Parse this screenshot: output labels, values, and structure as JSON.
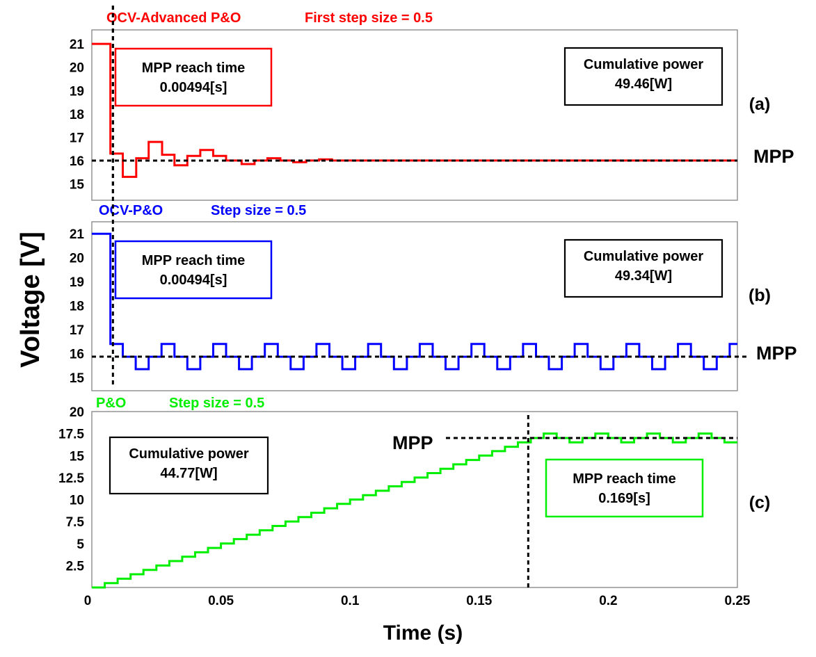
{
  "figure": {
    "ylabel": "Voltage [V]",
    "xlabel": "Time (s)",
    "x_ticks": [
      "0",
      "0.05",
      "0.1",
      "0.15",
      "0.2",
      "0.25"
    ]
  },
  "chart_data": [
    {
      "type": "line",
      "panel": "(a)",
      "color": "#ff0000",
      "title": "OCV-Advanced P&O",
      "subtitle": "First step size = 0.5",
      "xlim": [
        0,
        0.25
      ],
      "ylim": [
        14.3,
        21.6
      ],
      "y_ticks": [
        "15",
        "16",
        "17",
        "18",
        "19",
        "20",
        "21"
      ],
      "mpp_label": "MPP",
      "mpp_voltage": 16.0,
      "reach_time_value": 0.00494,
      "reach_box": {
        "label": "MPP reach time",
        "value": "0.00494[s]"
      },
      "cumulative_box": {
        "label": "Cumulative power",
        "value": "49.46[W]"
      },
      "series": [
        {
          "x": [
            0,
            0.0072,
            0.0072,
            0.012,
            0.012,
            0.0172,
            0.0172,
            0.022,
            0.022,
            0.0272,
            0.0272,
            0.032,
            0.032,
            0.037,
            0.037,
            0.042,
            0.042,
            0.047,
            0.047,
            0.052,
            0.052,
            0.058,
            0.058,
            0.063,
            0.063,
            0.068,
            0.068,
            0.073,
            0.073,
            0.078,
            0.078,
            0.083,
            0.083,
            0.088,
            0.088,
            0.093,
            0.093,
            0.25
          ],
          "y": [
            21.0,
            21.0,
            16.3,
            16.3,
            15.3,
            15.3,
            16.1,
            16.1,
            16.8,
            16.8,
            16.25,
            16.25,
            15.8,
            15.8,
            16.2,
            16.2,
            16.45,
            16.45,
            16.2,
            16.2,
            16.0,
            16.0,
            15.85,
            15.85,
            16.0,
            16.0,
            16.1,
            16.1,
            16.0,
            16.0,
            15.93,
            15.93,
            16.0,
            16.0,
            16.05,
            16.05,
            16.0,
            16.0
          ]
        }
      ]
    },
    {
      "type": "line",
      "panel": "(b)",
      "color": "#0000ff",
      "title": "OCV-P&O",
      "subtitle": "Step size = 0.5",
      "xlim": [
        0,
        0.25
      ],
      "ylim": [
        14.45,
        21.5
      ],
      "y_ticks": [
        "15",
        "16",
        "17",
        "18",
        "19",
        "20",
        "21"
      ],
      "mpp_label": "MPP",
      "mpp_voltage": 15.87,
      "reach_time_value": 0.00494,
      "reach_box": {
        "label": "MPP reach time",
        "value": "0.00494[s]"
      },
      "cumulative_box": {
        "label": "Cumulative power",
        "value": "49.34[W]"
      },
      "series": [
        {
          "x": [
            0,
            0.0072,
            0.0072,
            0.012,
            0.012,
            0.017,
            0.017,
            0.022,
            0.022,
            0.027,
            0.027,
            0.032,
            0.032,
            0.037,
            0.037,
            0.042,
            0.042,
            0.047,
            0.047,
            0.052,
            0.052,
            0.057,
            0.057,
            0.062,
            0.062,
            0.067,
            0.067,
            0.072,
            0.072,
            0.077,
            0.077,
            0.082,
            0.082,
            0.087,
            0.087,
            0.092,
            0.092,
            0.097,
            0.097,
            0.102,
            0.102,
            0.107,
            0.107,
            0.112,
            0.112,
            0.117,
            0.117,
            0.122,
            0.122,
            0.127,
            0.127,
            0.132,
            0.132,
            0.137,
            0.137,
            0.142,
            0.142,
            0.147,
            0.147,
            0.152,
            0.152,
            0.157,
            0.157,
            0.162,
            0.162,
            0.167,
            0.167,
            0.172,
            0.172,
            0.177,
            0.177,
            0.182,
            0.182,
            0.187,
            0.187,
            0.192,
            0.192,
            0.197,
            0.197,
            0.202,
            0.202,
            0.207,
            0.207,
            0.212,
            0.212,
            0.217,
            0.217,
            0.222,
            0.222,
            0.227,
            0.227,
            0.232,
            0.232,
            0.237,
            0.237,
            0.242,
            0.242,
            0.247,
            0.247,
            0.25
          ],
          "y": [
            21.0,
            21.0,
            16.4,
            16.4,
            15.87,
            15.87,
            15.35,
            15.35,
            15.87,
            15.87,
            16.4,
            16.4,
            15.87,
            15.87,
            15.35,
            15.35,
            15.87,
            15.87,
            16.4,
            16.4,
            15.87,
            15.87,
            15.35,
            15.35,
            15.87,
            15.87,
            16.4,
            16.4,
            15.87,
            15.87,
            15.35,
            15.35,
            15.87,
            15.87,
            16.4,
            16.4,
            15.87,
            15.87,
            15.35,
            15.35,
            15.87,
            15.87,
            16.4,
            16.4,
            15.87,
            15.87,
            15.35,
            15.35,
            15.87,
            15.87,
            16.4,
            16.4,
            15.87,
            15.87,
            15.35,
            15.35,
            15.87,
            15.87,
            16.4,
            16.4,
            15.87,
            15.87,
            15.35,
            15.35,
            15.87,
            15.87,
            16.4,
            16.4,
            15.87,
            15.87,
            15.35,
            15.35,
            15.87,
            15.87,
            16.4,
            16.4,
            15.87,
            15.87,
            15.35,
            15.35,
            15.87,
            15.87,
            16.4,
            16.4,
            15.87,
            15.87,
            15.35,
            15.35,
            15.87,
            15.87,
            16.4,
            16.4,
            15.87,
            15.87,
            15.35,
            15.35,
            15.87,
            15.87,
            16.4,
            16.4
          ]
        }
      ]
    },
    {
      "type": "line",
      "panel": "(c)",
      "color": "#00ee00",
      "title": "P&O",
      "subtitle": "Step size = 0.5",
      "xlim": [
        0,
        0.25
      ],
      "ylim": [
        0,
        20
      ],
      "y_ticks": [
        "2.5",
        "5",
        "7.5",
        "10",
        "12.5",
        "15",
        "17.5",
        "20"
      ],
      "mpp_label": "MPP",
      "mpp_voltage": 17.0,
      "reach_time_value": 0.169,
      "reach_box": {
        "label": "MPP reach time",
        "value": "0.169[s]"
      },
      "cumulative_box": {
        "label": "Cumulative power",
        "value": "44.77[W]"
      },
      "series": [
        {
          "x": [
            0,
            0.005,
            0.005,
            0.01,
            0.01,
            0.015,
            0.015,
            0.02,
            0.02,
            0.025,
            0.025,
            0.03,
            0.03,
            0.035,
            0.035,
            0.04,
            0.04,
            0.045,
            0.045,
            0.05,
            0.05,
            0.055,
            0.055,
            0.06,
            0.06,
            0.065,
            0.065,
            0.07,
            0.07,
            0.075,
            0.075,
            0.08,
            0.08,
            0.085,
            0.085,
            0.09,
            0.09,
            0.095,
            0.095,
            0.1,
            0.1,
            0.105,
            0.105,
            0.11,
            0.11,
            0.115,
            0.115,
            0.12,
            0.12,
            0.125,
            0.125,
            0.13,
            0.13,
            0.135,
            0.135,
            0.14,
            0.14,
            0.145,
            0.145,
            0.15,
            0.15,
            0.155,
            0.155,
            0.16,
            0.16,
            0.165,
            0.165,
            0.17,
            0.17,
            0.175,
            0.175,
            0.18,
            0.18,
            0.185,
            0.185,
            0.19,
            0.19,
            0.195,
            0.195,
            0.2,
            0.2,
            0.205,
            0.205,
            0.21,
            0.21,
            0.215,
            0.215,
            0.22,
            0.22,
            0.225,
            0.225,
            0.23,
            0.23,
            0.235,
            0.235,
            0.24,
            0.24,
            0.245,
            0.245,
            0.25
          ],
          "y": [
            0.0,
            0.0,
            0.5,
            0.5,
            1.0,
            1.0,
            1.5,
            1.5,
            2.0,
            2.0,
            2.5,
            2.5,
            3.0,
            3.0,
            3.5,
            3.5,
            4.0,
            4.0,
            4.5,
            4.5,
            5.0,
            5.0,
            5.5,
            5.5,
            6.0,
            6.0,
            6.5,
            6.5,
            7.0,
            7.0,
            7.5,
            7.5,
            8.0,
            8.0,
            8.5,
            8.5,
            9.0,
            9.0,
            9.5,
            9.5,
            10.0,
            10.0,
            10.5,
            10.5,
            11.0,
            11.0,
            11.5,
            11.5,
            12.0,
            12.0,
            12.5,
            12.5,
            13.0,
            13.0,
            13.5,
            13.5,
            14.0,
            14.0,
            14.5,
            14.5,
            15.0,
            15.0,
            15.5,
            15.5,
            16.0,
            16.0,
            16.5,
            16.5,
            17.0,
            17.0,
            17.5,
            17.5,
            17.0,
            17.0,
            16.5,
            16.5,
            17.0,
            17.0,
            17.5,
            17.5,
            17.0,
            17.0,
            16.5,
            16.5,
            17.0,
            17.0,
            17.5,
            17.5,
            17.0,
            17.0,
            16.5,
            16.5,
            17.0,
            17.0,
            17.5,
            17.5,
            17.0,
            17.0,
            16.5,
            16.5
          ]
        }
      ]
    }
  ]
}
